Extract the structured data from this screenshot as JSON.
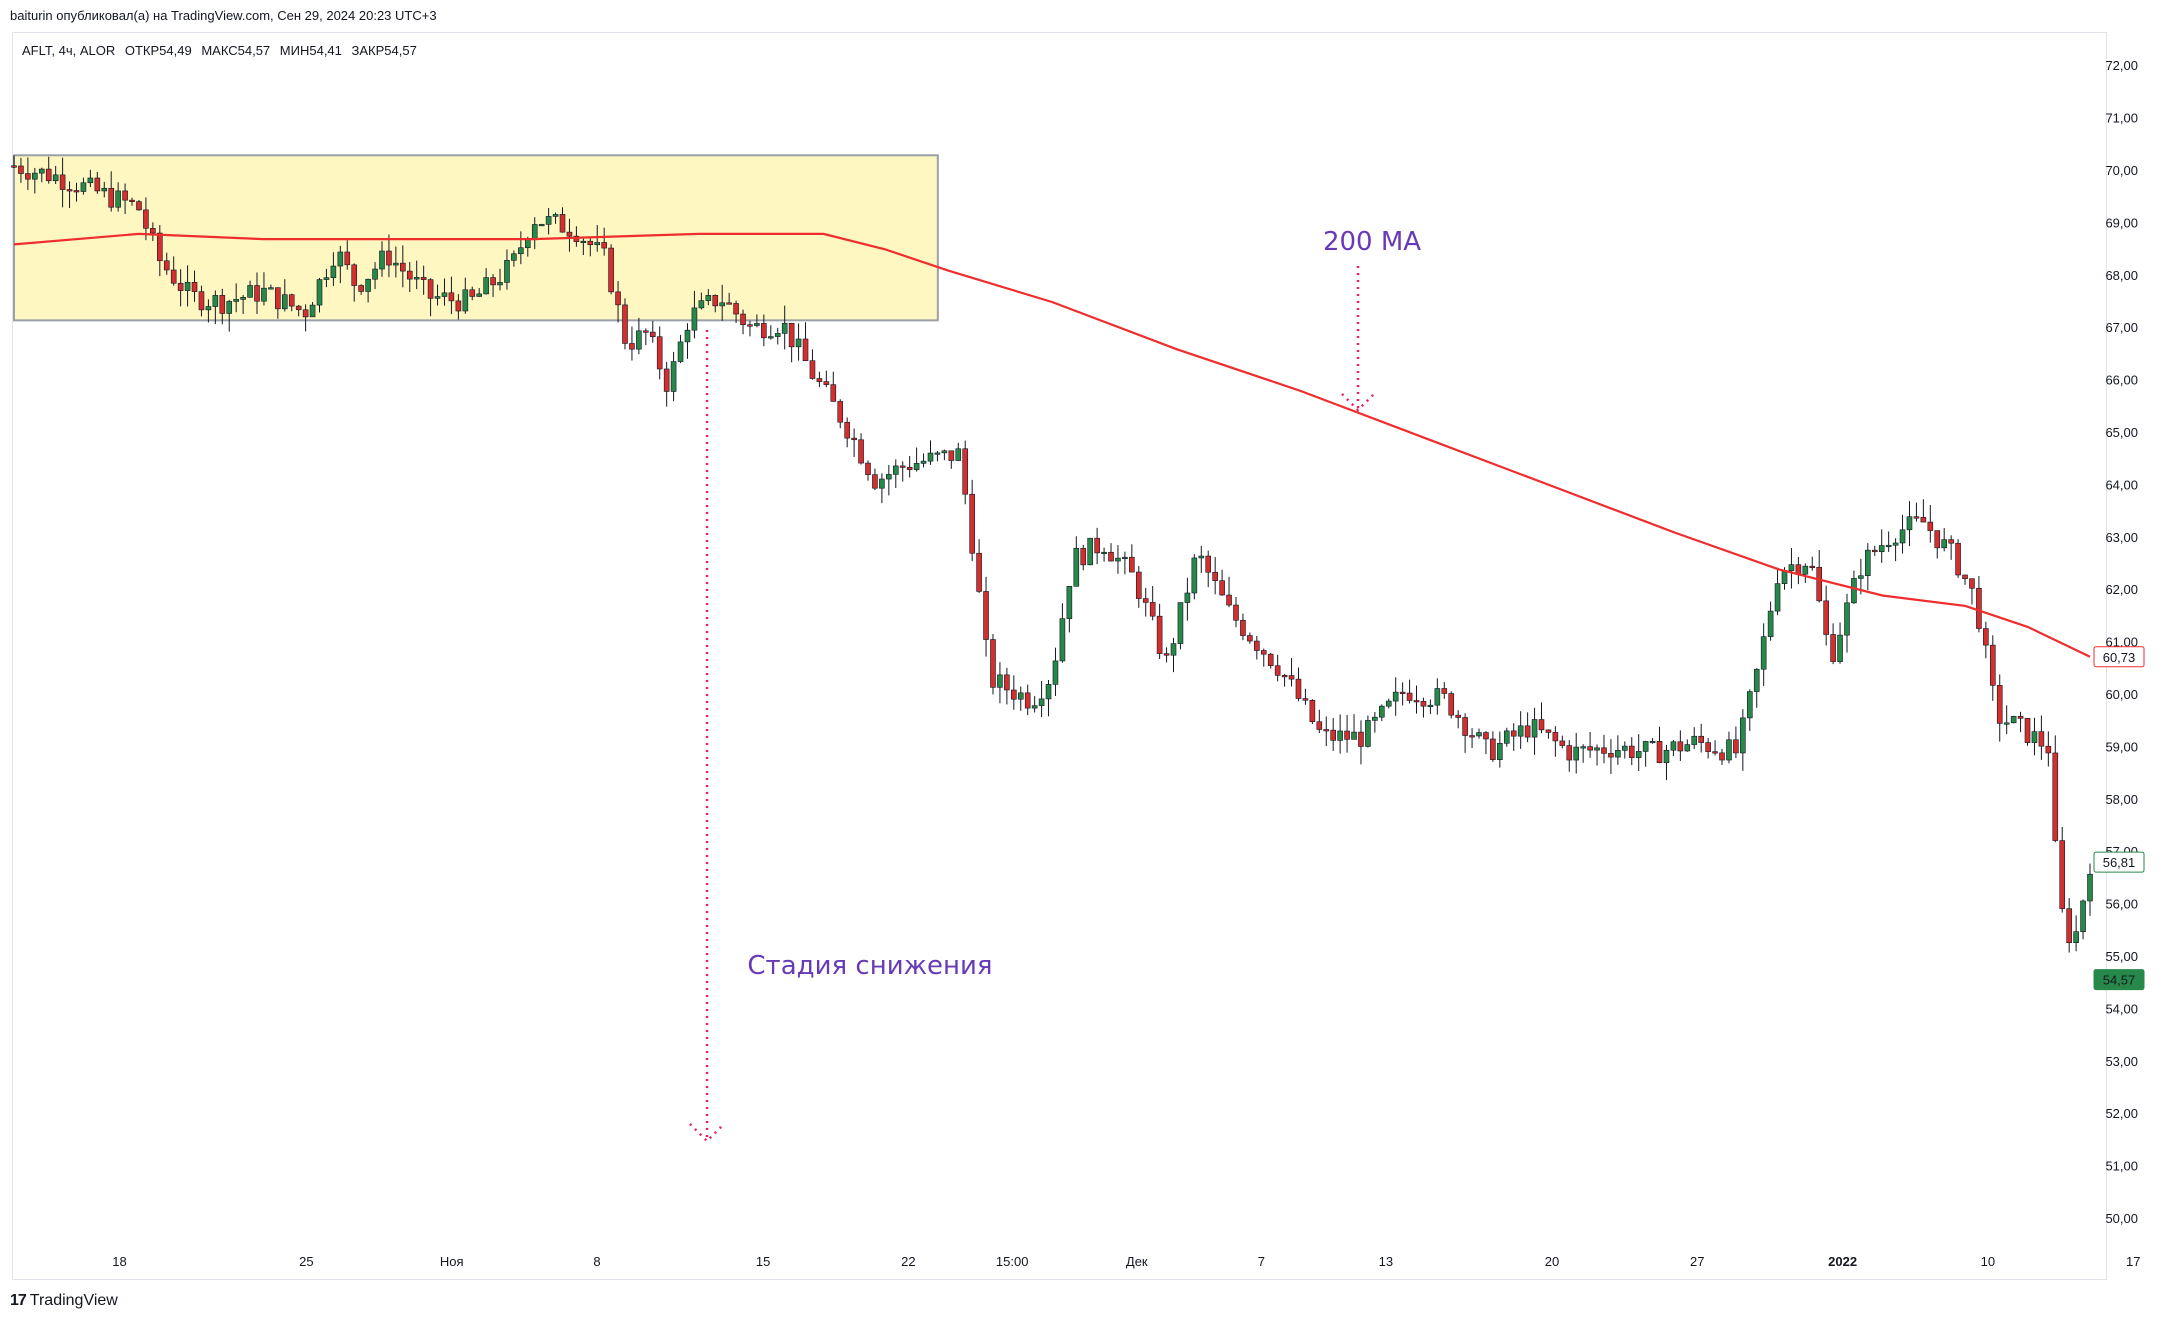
{
  "header": {
    "published": "baiturin опубликовал(а) на TradingView.com, Сен 29, 2024 20:23 UTC+3"
  },
  "legend": {
    "symbol": "AFLT, 4ч, ALOR",
    "open": "ОТКР54,49",
    "high": "МАКС54,57",
    "low": "МИН54,41",
    "close": "ЗАКР54,57"
  },
  "watermark": {
    "icon": "tradingview-logo-icon",
    "label": "TradingView"
  },
  "colors": {
    "up": "#26894a",
    "down": "#d32f2f",
    "ma": "#ef2d2d",
    "annotation": "#673ab7",
    "arrow": "#e91e63",
    "range_fill": "#fff7c2",
    "range_border": "#9ba0a8"
  },
  "chart_data": {
    "type": "candlestick",
    "symbol": "AFLT",
    "timeframe": "4ч",
    "ylim": [
      49.6,
      72.5
    ],
    "y_ticks": [
      "72,00",
      "71,00",
      "70,00",
      "69,00",
      "68,00",
      "67,00",
      "66,00",
      "65,00",
      "64,00",
      "63,00",
      "62,00",
      "61,00",
      "60,00",
      "59,00",
      "58,00",
      "57,00",
      "56,00",
      "55,00",
      "54,00",
      "53,00",
      "52,00",
      "51,00",
      "50,00"
    ],
    "x_ticks": [
      {
        "label": "18",
        "pos": 0.02
      },
      {
        "label": "25",
        "pos": 0.11
      },
      {
        "label": "Ноя",
        "pos": 0.18
      },
      {
        "label": "8",
        "pos": 0.25
      },
      {
        "label": "15",
        "pos": 0.33
      },
      {
        "label": "22",
        "pos": 0.4
      },
      {
        "label": "15:00",
        "pos": 0.45
      },
      {
        "label": "Дек",
        "pos": 0.51
      },
      {
        "label": "7",
        "pos": 0.57
      },
      {
        "label": "13",
        "pos": 0.63
      },
      {
        "label": "20",
        "pos": 0.71
      },
      {
        "label": "27",
        "pos": 0.78
      },
      {
        "label": "2022",
        "pos": 0.85,
        "bold": true
      },
      {
        "label": "10",
        "pos": 0.92
      },
      {
        "label": "17",
        "pos": 0.99
      }
    ],
    "price_path": [
      [
        0.0,
        70.1
      ],
      [
        0.02,
        69.9
      ],
      [
        0.04,
        69.6
      ],
      [
        0.06,
        69.3
      ],
      [
        0.07,
        68.3
      ],
      [
        0.085,
        67.6
      ],
      [
        0.1,
        67.5
      ],
      [
        0.12,
        67.7
      ],
      [
        0.14,
        67.3
      ],
      [
        0.155,
        68.5
      ],
      [
        0.165,
        67.8
      ],
      [
        0.18,
        68.4
      ],
      [
        0.2,
        67.6
      ],
      [
        0.22,
        67.5
      ],
      [
        0.24,
        68.2
      ],
      [
        0.25,
        69.1
      ],
      [
        0.27,
        68.9
      ],
      [
        0.285,
        68.3
      ],
      [
        0.295,
        66.7
      ],
      [
        0.305,
        66.9
      ],
      [
        0.315,
        65.9
      ],
      [
        0.325,
        67.2
      ],
      [
        0.34,
        67.6
      ],
      [
        0.355,
        67.0
      ],
      [
        0.37,
        67.1
      ],
      [
        0.385,
        66.1
      ],
      [
        0.4,
        65.2
      ],
      [
        0.415,
        64.1
      ],
      [
        0.43,
        64.4
      ],
      [
        0.455,
        64.6
      ],
      [
        0.46,
        63.4
      ],
      [
        0.47,
        60.3
      ],
      [
        0.49,
        59.9
      ],
      [
        0.5,
        60.4
      ],
      [
        0.51,
        62.6
      ],
      [
        0.525,
        62.9
      ],
      [
        0.54,
        62.2
      ],
      [
        0.555,
        60.6
      ],
      [
        0.57,
        62.7
      ],
      [
        0.585,
        61.6
      ],
      [
        0.61,
        60.5
      ],
      [
        0.63,
        59.2
      ],
      [
        0.65,
        59.2
      ],
      [
        0.67,
        60.1
      ],
      [
        0.69,
        59.9
      ],
      [
        0.71,
        58.9
      ],
      [
        0.73,
        59.4
      ],
      [
        0.75,
        58.9
      ],
      [
        0.77,
        59.0
      ],
      [
        0.79,
        58.9
      ],
      [
        0.81,
        59.1
      ],
      [
        0.83,
        58.9
      ],
      [
        0.84,
        60.5
      ],
      [
        0.85,
        62.4
      ],
      [
        0.865,
        62.6
      ],
      [
        0.875,
        60.7
      ],
      [
        0.89,
        62.5
      ],
      [
        0.905,
        63.1
      ],
      [
        0.92,
        63.3
      ],
      [
        0.935,
        62.6
      ],
      [
        0.945,
        61.8
      ],
      [
        0.955,
        59.6
      ],
      [
        0.965,
        59.4
      ],
      [
        0.98,
        59.0
      ],
      [
        0.985,
        56.0
      ],
      [
        0.992,
        55.2
      ],
      [
        1.0,
        56.8
      ]
    ],
    "ma200": {
      "name": "200 MA",
      "points": [
        [
          0.0,
          68.6
        ],
        [
          0.06,
          68.8
        ],
        [
          0.12,
          68.7
        ],
        [
          0.18,
          68.7
        ],
        [
          0.25,
          68.7
        ],
        [
          0.33,
          68.8
        ],
        [
          0.39,
          68.8
        ],
        [
          0.42,
          68.5
        ],
        [
          0.45,
          68.1
        ],
        [
          0.5,
          67.5
        ],
        [
          0.56,
          66.6
        ],
        [
          0.62,
          65.8
        ],
        [
          0.68,
          64.9
        ],
        [
          0.74,
          64.0
        ],
        [
          0.8,
          63.1
        ],
        [
          0.85,
          62.4
        ],
        [
          0.9,
          61.9
        ],
        [
          0.94,
          61.7
        ],
        [
          0.97,
          61.3
        ],
        [
          1.0,
          60.73
        ]
      ]
    },
    "last_labels": {
      "ma": "60,73",
      "prev_close": "56,81",
      "last": "54,57"
    },
    "annotations": {
      "range_box": {
        "y_top": 70.3,
        "y_bottom": 67.15,
        "x_start": 0.0,
        "x_end": 0.445
      },
      "ma_label": "200 MA",
      "stage_label": "Стадия снижения"
    }
  }
}
